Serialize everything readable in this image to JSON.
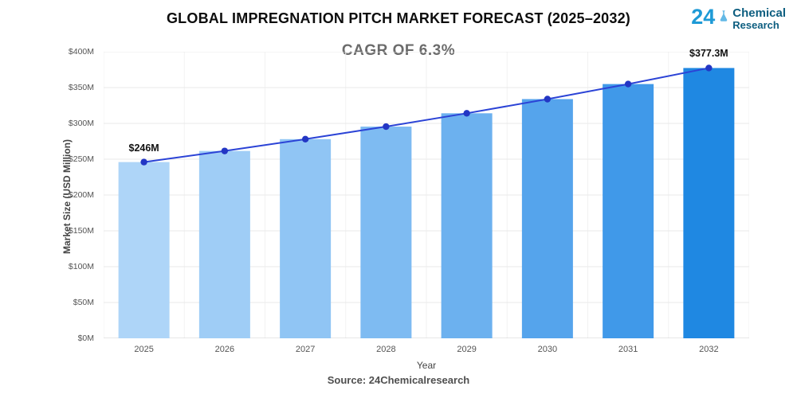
{
  "header": {
    "title": "GLOBAL IMPREGNATION PITCH MARKET FORECAST (2025–2032)",
    "subtitle": "CAGR OF 6.3%"
  },
  "logo": {
    "number": "24",
    "word1": "Chemical",
    "word2": "Research"
  },
  "chart_data": {
    "type": "bar",
    "categories": [
      "2025",
      "2026",
      "2027",
      "2028",
      "2029",
      "2030",
      "2031",
      "2032"
    ],
    "values": [
      246,
      261.5,
      278,
      295.5,
      314.1,
      333.9,
      354.9,
      377.3
    ],
    "title": "GLOBAL IMPREGNATION PITCH MARKET FORECAST (2025–2032)",
    "subtitle": "CAGR OF 6.3%",
    "xlabel": "Year",
    "ylabel": "Market Size (USD Million)",
    "ylim": [
      0,
      400
    ],
    "ytick_step": 50,
    "ytick_labels": [
      "$0M",
      "$50M",
      "$100M",
      "$150M",
      "$200M",
      "$250M",
      "$300M",
      "$350M",
      "$400M"
    ],
    "grid": "horizontal-light",
    "legend": "none",
    "bar_colors": [
      "#aed5f8",
      "#9fcdf6",
      "#90c5f4",
      "#7ebbf2",
      "#6cb1ef",
      "#55a4ec",
      "#4099e9",
      "#1f88e2"
    ],
    "line_color": "#2b43d6",
    "marker_color": "#2336c4",
    "annotations": [
      {
        "index": 0,
        "text": "$246M"
      },
      {
        "index": 7,
        "text": "$377.3M"
      }
    ]
  },
  "footer": {
    "source": "Source: 24Chemicalresearch"
  }
}
